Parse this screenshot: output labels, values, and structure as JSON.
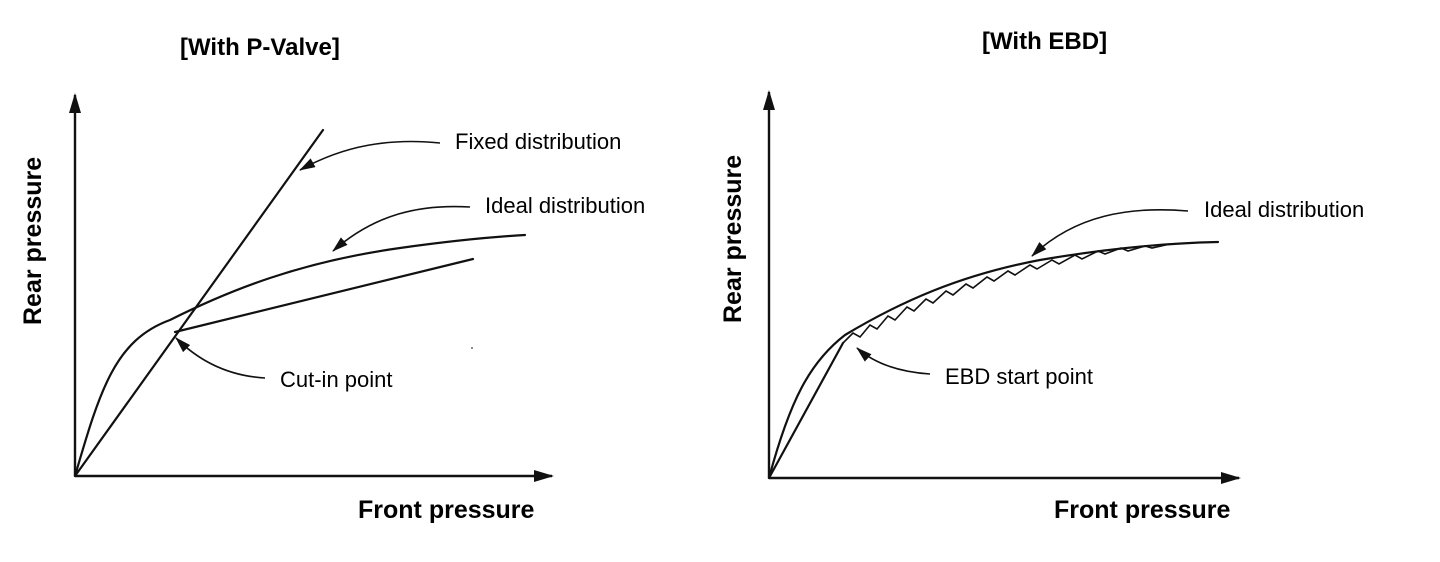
{
  "left_panel": {
    "title": "[With P-Valve]",
    "x_axis_label": "Front pressure",
    "y_axis_label": "Rear pressure",
    "annotations": {
      "fixed": "Fixed distribution",
      "ideal": "Ideal distribution",
      "cutin": "Cut-in point"
    }
  },
  "right_panel": {
    "title": "[With EBD]",
    "x_axis_label": "Front pressure",
    "y_axis_label": "Rear pressure",
    "annotations": {
      "ideal": "Ideal distribution",
      "start": "EBD start point"
    }
  }
}
